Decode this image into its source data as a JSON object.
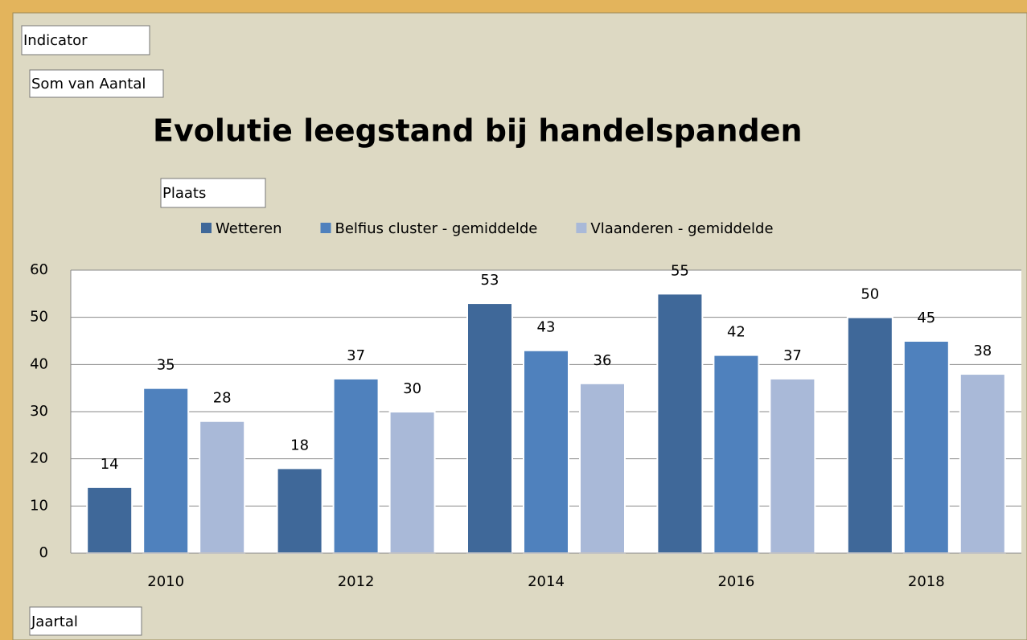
{
  "chart_data": {
    "type": "bar",
    "title": "Evolutie leegstand bij handelspanden",
    "categories": [
      "2010",
      "2012",
      "2014",
      "2016",
      "2018"
    ],
    "series": [
      {
        "name": "Wetteren",
        "color": "#3f6899",
        "values": [
          14,
          18,
          53,
          55,
          50
        ]
      },
      {
        "name": "Belfius cluster - gemiddelde",
        "color": "#4f81bd",
        "values": [
          35,
          37,
          43,
          42,
          45
        ]
      },
      {
        "name": "Vlaanderen - gemiddelde",
        "color": "#a9b9d8",
        "values": [
          28,
          30,
          36,
          37,
          38
        ]
      }
    ],
    "ylim": [
      0,
      60
    ],
    "yticks": [
      0,
      10,
      20,
      30,
      40,
      50,
      60
    ],
    "grid": true,
    "legend": "top"
  },
  "buttons": {
    "indicator": "Indicator",
    "value_field": "Som van Aantal",
    "series_field": "Plaats",
    "axis_field": "Jaartal"
  }
}
